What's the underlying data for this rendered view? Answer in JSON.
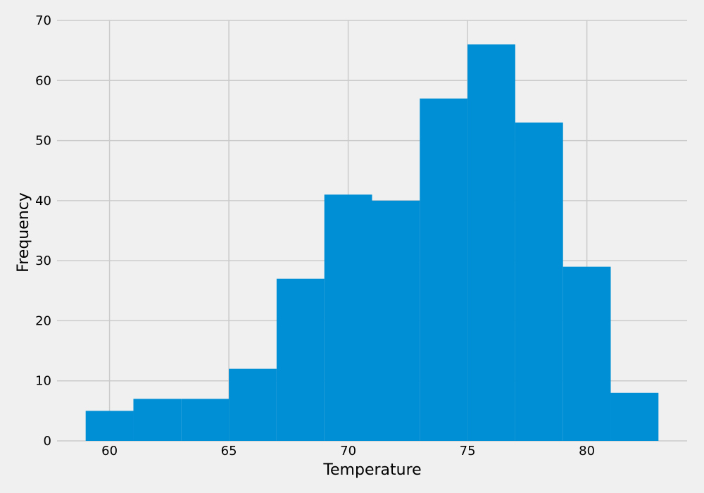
{
  "colors": {
    "background": "#f0f0f0",
    "bar": "#008fd5",
    "grid": "#cbcbcb"
  },
  "chart_data": {
    "type": "bar",
    "subtype": "histogram",
    "title": "",
    "xlabel": "Temperature",
    "ylabel": "Frequency",
    "xlim": [
      57.8,
      84.2
    ],
    "ylim": [
      0,
      70
    ],
    "xticks": [
      60,
      65,
      70,
      75,
      80
    ],
    "yticks": [
      0,
      10,
      20,
      30,
      40,
      50,
      60,
      70
    ],
    "grid": true,
    "bin_edges": [
      59,
      61,
      63,
      65,
      67,
      69,
      71,
      73,
      75,
      77,
      79,
      81,
      83
    ],
    "values": [
      5,
      7,
      7,
      12,
      27,
      41,
      40,
      57,
      66,
      53,
      29,
      8
    ]
  }
}
